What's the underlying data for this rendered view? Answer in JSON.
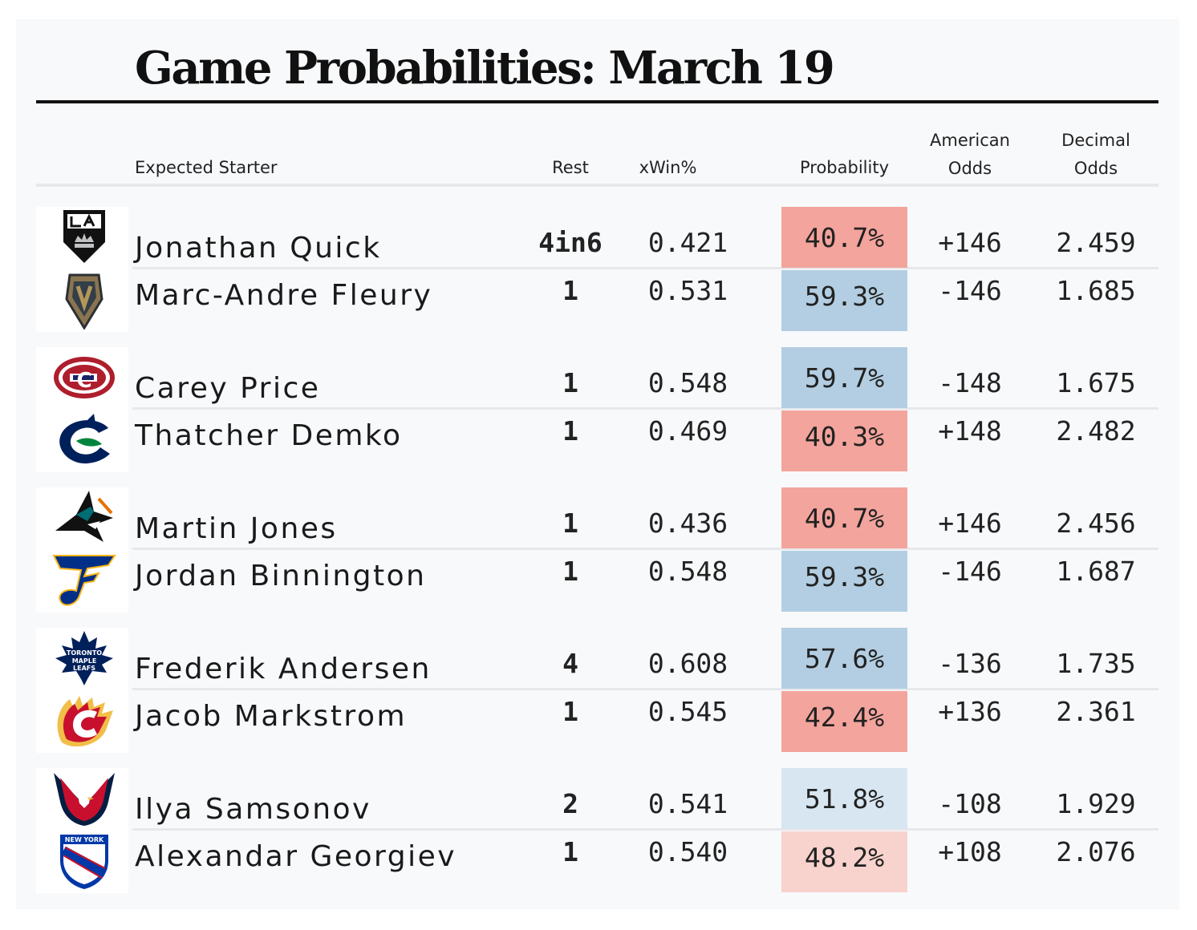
{
  "title": "Game Probabilities: March 19",
  "columns": {
    "starter": "Expected Starter",
    "rest": "Rest",
    "xwin": "xWin%",
    "probability": "Probability",
    "american_odds": [
      "American",
      "Odds"
    ],
    "decimal_odds": [
      "Decimal",
      "Odds"
    ]
  },
  "colors": {
    "favorite_strong": "#b3cee2",
    "favorite_light": "#d8e6f1",
    "underdog_strong": "#f3a49c",
    "underdog_light": "#f8d2cd"
  },
  "chart_data": {
    "type": "table",
    "games": [
      {
        "teams": [
          {
            "team_icon": "la-kings-logo-icon",
            "starter": "Jonathan Quick",
            "rest": "4in6",
            "xwin": "0.421",
            "probability": "40.7%",
            "american": "+146",
            "decimal": "2.459",
            "prob_value": 40.7
          },
          {
            "team_icon": "vegas-golden-knights-logo-icon",
            "starter": "Marc-Andre Fleury",
            "rest": "1",
            "xwin": "0.531",
            "probability": "59.3%",
            "american": "-146",
            "decimal": "1.685",
            "prob_value": 59.3
          }
        ]
      },
      {
        "teams": [
          {
            "team_icon": "montreal-canadiens-logo-icon",
            "starter": "Carey Price",
            "rest": "1",
            "xwin": "0.548",
            "probability": "59.7%",
            "american": "-148",
            "decimal": "1.675",
            "prob_value": 59.7
          },
          {
            "team_icon": "vancouver-canucks-logo-icon",
            "starter": "Thatcher Demko",
            "rest": "1",
            "xwin": "0.469",
            "probability": "40.3%",
            "american": "+148",
            "decimal": "2.482",
            "prob_value": 40.3
          }
        ]
      },
      {
        "teams": [
          {
            "team_icon": "san-jose-sharks-logo-icon",
            "starter": "Martin Jones",
            "rest": "1",
            "xwin": "0.436",
            "probability": "40.7%",
            "american": "+146",
            "decimal": "2.456",
            "prob_value": 40.7
          },
          {
            "team_icon": "st-louis-blues-logo-icon",
            "starter": "Jordan Binnington",
            "rest": "1",
            "xwin": "0.548",
            "probability": "59.3%",
            "american": "-146",
            "decimal": "1.687",
            "prob_value": 59.3
          }
        ]
      },
      {
        "teams": [
          {
            "team_icon": "toronto-maple-leafs-logo-icon",
            "starter": "Frederik Andersen",
            "rest": "4",
            "xwin": "0.608",
            "probability": "57.6%",
            "american": "-136",
            "decimal": "1.735",
            "prob_value": 57.6
          },
          {
            "team_icon": "calgary-flames-logo-icon",
            "starter": "Jacob Markstrom",
            "rest": "1",
            "xwin": "0.545",
            "probability": "42.4%",
            "american": "+136",
            "decimal": "2.361",
            "prob_value": 42.4
          }
        ]
      },
      {
        "teams": [
          {
            "team_icon": "washington-capitals-logo-icon",
            "starter": "Ilya Samsonov",
            "rest": "2",
            "xwin": "0.541",
            "probability": "51.8%",
            "american": "-108",
            "decimal": "1.929",
            "prob_value": 51.8
          },
          {
            "team_icon": "new-york-rangers-logo-icon",
            "starter": "Alexandar Georgiev",
            "rest": "1",
            "xwin": "0.540",
            "probability": "48.2%",
            "american": "+108",
            "decimal": "2.076",
            "prob_value": 48.2
          }
        ]
      }
    ]
  }
}
